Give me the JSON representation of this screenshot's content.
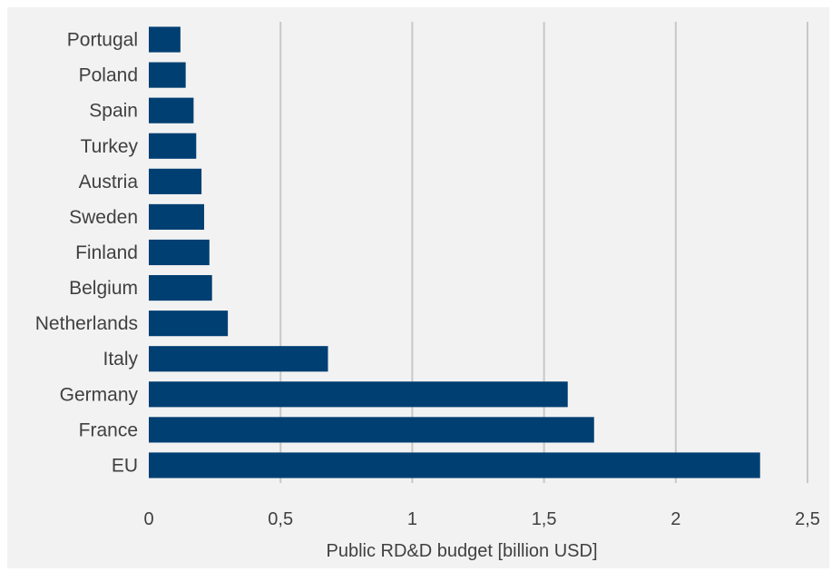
{
  "chart_data": {
    "type": "bar",
    "orientation": "horizontal",
    "title": "",
    "xlabel": "Public RD&D budget [billion USD]",
    "ylabel": "",
    "categories": [
      "Portugal",
      "Poland",
      "Spain",
      "Turkey",
      "Austria",
      "Sweden",
      "Finland",
      "Belgium",
      "Netherlands",
      "Italy",
      "Germany",
      "France",
      "EU"
    ],
    "values": [
      0.12,
      0.14,
      0.17,
      0.18,
      0.2,
      0.21,
      0.23,
      0.24,
      0.3,
      0.68,
      1.59,
      1.69,
      2.32
    ],
    "xlim": [
      0,
      2.5
    ],
    "xticks": [
      "0",
      "0,5",
      "1",
      "1,5",
      "2",
      "2,5"
    ],
    "xtick_values": [
      0,
      0.5,
      1,
      1.5,
      2,
      2.5
    ],
    "grid": "vertical",
    "legend": "none",
    "colors": {
      "bar": "#003f72",
      "background": "#f2f2f2",
      "grid": "#c8c8c8"
    }
  }
}
